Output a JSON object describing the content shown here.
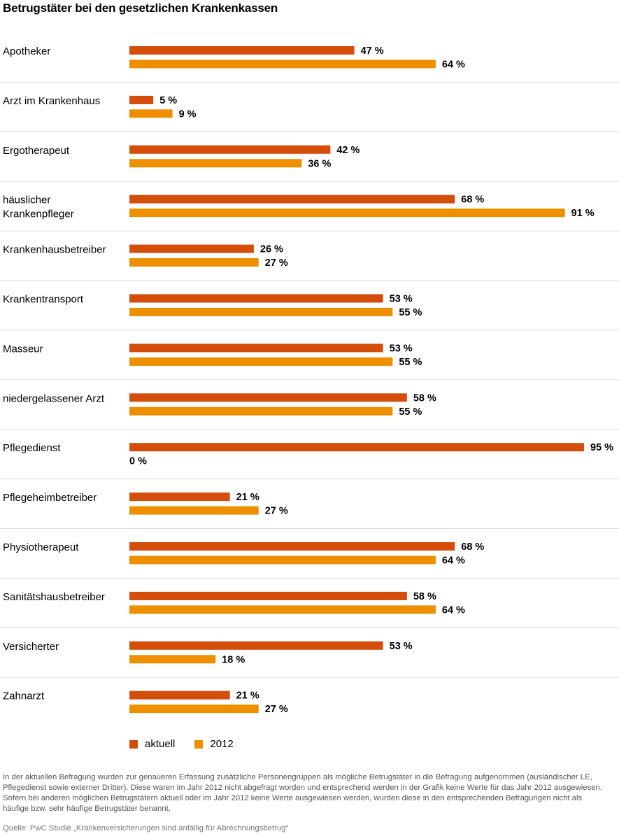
{
  "title": "Betrugstäter bei den gesetzlichen Krankenkassen",
  "chart_data": {
    "type": "bar",
    "orientation": "horizontal",
    "categories": [
      "Apotheker",
      "Arzt im Krankenhaus",
      "Ergotherapeut",
      "häuslicher Krankenpfleger",
      "Krankenhausbetreiber",
      "Krankentransport",
      "Masseur",
      "niedergelassener Arzt",
      "Pflegedienst",
      "Pflegeheimbetreiber",
      "Physiotherapeut",
      "Sanitätshausbetreiber",
      "Versicherter",
      "Zahnarzt"
    ],
    "category_lines": [
      [
        "Apotheker"
      ],
      [
        "Arzt im Krankenhaus"
      ],
      [
        "Ergotherapeut"
      ],
      [
        "häuslicher",
        "Krankenpfleger"
      ],
      [
        "Krankenhausbetreiber"
      ],
      [
        "Krankentransport"
      ],
      [
        "Masseur"
      ],
      [
        "niedergelassener Arzt"
      ],
      [
        "Pflegedienst"
      ],
      [
        "Pflegeheimbetreiber"
      ],
      [
        "Physiotherapeut"
      ],
      [
        "Sanitätshausbetreiber"
      ],
      [
        "Versicherter"
      ],
      [
        "Zahnarzt"
      ]
    ],
    "series": [
      {
        "name": "aktuell",
        "color": "#d44d0b",
        "values": [
          47,
          5,
          42,
          68,
          26,
          53,
          53,
          58,
          95,
          21,
          68,
          58,
          53,
          21
        ]
      },
      {
        "name": "2012",
        "color": "#ee8f00",
        "values": [
          64,
          9,
          36,
          91,
          27,
          55,
          55,
          55,
          0,
          27,
          64,
          64,
          18,
          27
        ]
      }
    ],
    "value_suffix": " %",
    "xlim": [
      0,
      95
    ],
    "grid": false,
    "legend_position": "bottom"
  },
  "note": "In der aktuellen Befragung wurden zur genaueren Erfassung zusätzliche Personengruppen als mögliche Betrugstäter in die Befragung aufgenommen (ausländischer LE, Pflegedienst sowie externer Dritter). Diese waren im Jahr 2012 nicht abgefragt worden und entsprechend werden in der Grafik keine Werte für das Jahr 2012 ausgewiesen. Sofern bei anderen möglichen Betrugstätern aktuell oder im Jahr 2012 keine Werte ausgewiesen werden, wurden diese in den entsprechenden Befragungen nicht als häufige bzw. sehr häufige Betrugstäter benannt.",
  "source": "Quelle: PwC Studie „Krankenversicherungen sind anfällig für Abrechnungsbetrug“"
}
